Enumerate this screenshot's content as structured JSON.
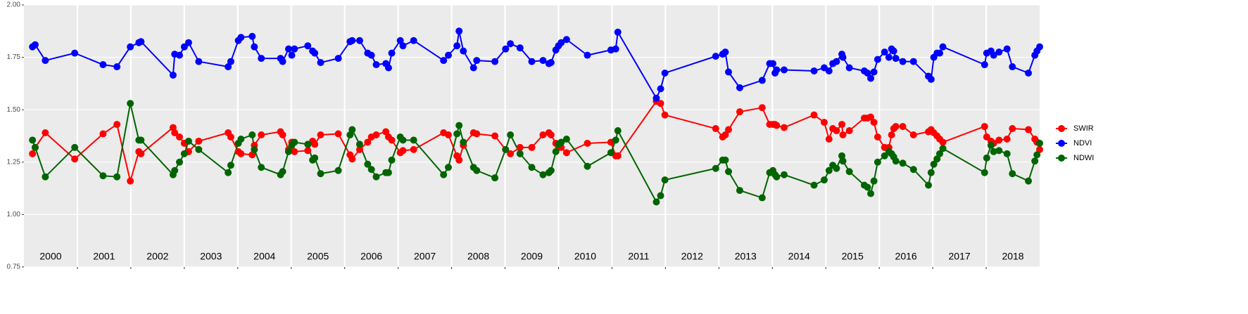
{
  "chart_data": {
    "type": "line",
    "legend": "right",
    "grid": true,
    "xlim": [
      2000,
      2019
    ],
    "xticks": [
      2001,
      2002,
      2003,
      2004,
      2005,
      2006,
      2007,
      2008,
      2009,
      2010,
      2011,
      2012,
      2013,
      2014,
      2015,
      2016,
      2017,
      2018
    ],
    "year_labels": [
      "2000",
      "2001",
      "2002",
      "2003",
      "2004",
      "2005",
      "2006",
      "2007",
      "2008",
      "2009",
      "2010",
      "2011",
      "2012",
      "2013",
      "2014",
      "2015",
      "2016",
      "2017",
      "2018"
    ],
    "ylim": [
      0.75,
      2.0
    ],
    "yticks": [
      {
        "value": 0.75,
        "label": "0.75"
      },
      {
        "value": 1,
        "label": "1.00"
      },
      {
        "value": 1.25,
        "label": "1.25"
      },
      {
        "value": 1.5,
        "label": "1.50"
      },
      {
        "value": 1.75,
        "label": "1.75"
      },
      {
        "value": 2,
        "label": "2.00"
      }
    ],
    "x": [
      2000.16,
      2000.21,
      2000.4,
      2000.95,
      2001.48,
      2001.74,
      2001.99,
      2002.15,
      2002.19,
      2002.79,
      2002.82,
      2002.91,
      2003.0,
      2003.08,
      2003.27,
      2003.82,
      2003.87,
      2004.01,
      2004.06,
      2004.27,
      2004.31,
      2004.44,
      2004.8,
      2004.84,
      2004.95,
      2005.01,
      2005.06,
      2005.31,
      2005.4,
      2005.44,
      2005.55,
      2005.88,
      2006.1,
      2006.14,
      2006.28,
      2006.43,
      2006.5,
      2006.59,
      2006.77,
      2006.82,
      2006.88,
      2007.04,
      2007.09,
      2007.29,
      2007.85,
      2007.94,
      2008.1,
      2008.14,
      2008.22,
      2008.41,
      2008.47,
      2008.81,
      2009.01,
      2009.1,
      2009.28,
      2009.5,
      2009.71,
      2009.82,
      2009.86,
      2009.95,
      2010.0,
      2010.05,
      2010.15,
      2010.54,
      2010.98,
      2011.07,
      2011.11,
      2011.83,
      2011.91,
      2011.99,
      2012.94,
      2013.07,
      2013.12,
      2013.18,
      2013.39,
      2013.81,
      2013.95,
      2014.01,
      2014.05,
      2014.08,
      2014.22,
      2014.78,
      2014.97,
      2015.06,
      2015.13,
      2015.2,
      2015.3,
      2015.32,
      2015.44,
      2015.72,
      2015.78,
      2015.84,
      2015.9,
      2015.97,
      2016.1,
      2016.18,
      2016.23,
      2016.27,
      2016.31,
      2016.44,
      2016.64,
      2016.92,
      2016.97,
      2017.02,
      2017.08,
      2017.13,
      2017.19,
      2017.97,
      2018.01,
      2018.09,
      2018.14,
      2018.24,
      2018.39,
      2018.49,
      2018.79,
      2018.91,
      2018.95,
      2019.0
    ],
    "series": [
      {
        "name": "SWIR",
        "color": "#ff0000",
        "values": [
          1.29,
          1.32,
          1.39,
          1.265,
          1.385,
          1.43,
          1.16,
          1.3,
          1.29,
          1.415,
          1.39,
          1.37,
          1.34,
          1.3,
          1.35,
          1.39,
          1.37,
          1.3,
          1.29,
          1.285,
          1.33,
          1.38,
          1.395,
          1.38,
          1.31,
          1.345,
          1.3,
          1.305,
          1.35,
          1.335,
          1.38,
          1.385,
          1.285,
          1.265,
          1.31,
          1.345,
          1.37,
          1.38,
          1.395,
          1.37,
          1.355,
          1.295,
          1.305,
          1.31,
          1.39,
          1.38,
          1.28,
          1.26,
          1.33,
          1.39,
          1.385,
          1.375,
          1.31,
          1.29,
          1.32,
          1.32,
          1.38,
          1.39,
          1.38,
          1.34,
          1.32,
          1.32,
          1.295,
          1.34,
          1.345,
          1.28,
          1.28,
          1.54,
          1.53,
          1.475,
          1.41,
          1.37,
          1.38,
          1.405,
          1.49,
          1.51,
          1.43,
          1.43,
          1.43,
          1.425,
          1.415,
          1.475,
          1.44,
          1.36,
          1.41,
          1.4,
          1.43,
          1.38,
          1.4,
          1.46,
          1.46,
          1.465,
          1.44,
          1.37,
          1.32,
          1.32,
          1.38,
          1.41,
          1.42,
          1.42,
          1.38,
          1.395,
          1.405,
          1.39,
          1.375,
          1.36,
          1.345,
          1.42,
          1.37,
          1.35,
          1.34,
          1.355,
          1.36,
          1.41,
          1.405,
          1.36,
          1.345,
          1.31
        ]
      },
      {
        "name": "NDVI",
        "color": "#0000ff",
        "values": [
          1.8,
          1.81,
          1.735,
          1.77,
          1.715,
          1.705,
          1.8,
          1.82,
          1.825,
          1.665,
          1.765,
          1.76,
          1.8,
          1.82,
          1.73,
          1.705,
          1.73,
          1.83,
          1.845,
          1.85,
          1.8,
          1.745,
          1.745,
          1.73,
          1.79,
          1.76,
          1.79,
          1.805,
          1.78,
          1.77,
          1.725,
          1.745,
          1.825,
          1.83,
          1.83,
          1.77,
          1.76,
          1.715,
          1.72,
          1.7,
          1.77,
          1.83,
          1.805,
          1.83,
          1.735,
          1.76,
          1.805,
          1.875,
          1.78,
          1.7,
          1.735,
          1.73,
          1.79,
          1.815,
          1.795,
          1.73,
          1.735,
          1.72,
          1.725,
          1.785,
          1.805,
          1.82,
          1.835,
          1.76,
          1.785,
          1.79,
          1.87,
          1.555,
          1.6,
          1.675,
          1.755,
          1.765,
          1.775,
          1.68,
          1.605,
          1.64,
          1.72,
          1.72,
          1.675,
          1.69,
          1.69,
          1.685,
          1.7,
          1.685,
          1.72,
          1.73,
          1.765,
          1.75,
          1.7,
          1.685,
          1.675,
          1.65,
          1.68,
          1.74,
          1.775,
          1.75,
          1.79,
          1.78,
          1.745,
          1.73,
          1.73,
          1.66,
          1.645,
          1.75,
          1.77,
          1.77,
          1.8,
          1.715,
          1.77,
          1.78,
          1.76,
          1.775,
          1.79,
          1.705,
          1.675,
          1.76,
          1.78,
          1.8
        ]
      },
      {
        "name": "NDWI",
        "color": "#006400",
        "values": [
          1.355,
          1.32,
          1.18,
          1.32,
          1.185,
          1.18,
          1.53,
          1.355,
          1.355,
          1.19,
          1.21,
          1.25,
          1.29,
          1.35,
          1.31,
          1.2,
          1.235,
          1.34,
          1.36,
          1.38,
          1.31,
          1.225,
          1.19,
          1.205,
          1.3,
          1.33,
          1.345,
          1.335,
          1.26,
          1.27,
          1.195,
          1.21,
          1.38,
          1.405,
          1.335,
          1.24,
          1.215,
          1.18,
          1.2,
          1.2,
          1.26,
          1.37,
          1.355,
          1.355,
          1.19,
          1.225,
          1.385,
          1.425,
          1.345,
          1.225,
          1.21,
          1.175,
          1.31,
          1.38,
          1.29,
          1.225,
          1.19,
          1.2,
          1.21,
          1.3,
          1.335,
          1.345,
          1.36,
          1.23,
          1.295,
          1.355,
          1.4,
          1.06,
          1.09,
          1.165,
          1.22,
          1.26,
          1.26,
          1.205,
          1.115,
          1.08,
          1.2,
          1.21,
          1.19,
          1.18,
          1.19,
          1.14,
          1.165,
          1.21,
          1.235,
          1.22,
          1.28,
          1.255,
          1.205,
          1.14,
          1.13,
          1.1,
          1.16,
          1.25,
          1.28,
          1.3,
          1.29,
          1.275,
          1.255,
          1.245,
          1.215,
          1.14,
          1.2,
          1.24,
          1.265,
          1.29,
          1.315,
          1.2,
          1.27,
          1.33,
          1.3,
          1.305,
          1.29,
          1.195,
          1.16,
          1.255,
          1.285,
          1.34
        ]
      }
    ]
  }
}
